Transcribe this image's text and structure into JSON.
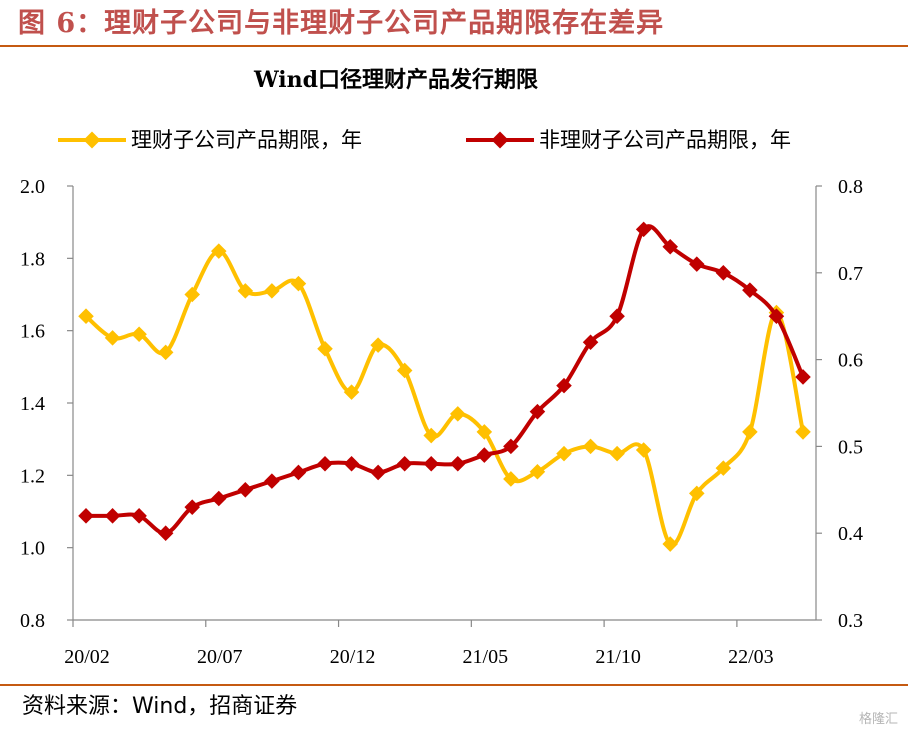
{
  "figure": {
    "title": "图  6：理财子公司与非理财子公司产品期限存在差异",
    "source": "资料来源：Wind，招商证券",
    "watermark": "格隆汇"
  },
  "chart_data": {
    "type": "line",
    "title": "Wind口径理财产品发行期限",
    "categories": [
      "20/02",
      "20/03",
      "20/04",
      "20/05",
      "20/06",
      "20/07",
      "20/08",
      "20/09",
      "20/10",
      "20/11",
      "20/12",
      "21/01",
      "21/02",
      "21/03",
      "21/04",
      "21/05",
      "21/06",
      "21/07",
      "21/08",
      "21/09",
      "21/10",
      "21/11",
      "21/12",
      "22/01",
      "22/02",
      "22/03",
      "22/04",
      "22/05"
    ],
    "xtick_labels": [
      "20/02",
      "20/07",
      "20/12",
      "21/05",
      "21/10",
      "22/03"
    ],
    "left_axis": {
      "ylim": [
        0.8,
        2.0
      ],
      "ticks": [
        "0.8",
        "1.0",
        "1.2",
        "1.4",
        "1.6",
        "1.8",
        "2.0"
      ]
    },
    "right_axis": {
      "ylim": [
        0.3,
        0.8
      ],
      "ticks": [
        "0.3",
        "0.4",
        "0.5",
        "0.6",
        "0.7",
        "0.8"
      ]
    },
    "series": [
      {
        "name": "理财子公司产品期限，年",
        "axis": "left",
        "color": "#ffc000",
        "values": [
          1.64,
          1.58,
          1.59,
          1.54,
          1.7,
          1.82,
          1.71,
          1.71,
          1.73,
          1.55,
          1.43,
          1.56,
          1.49,
          1.31,
          1.37,
          1.32,
          1.19,
          1.21,
          1.26,
          1.28,
          1.26,
          1.27,
          1.01,
          1.15,
          1.22,
          1.32,
          1.65,
          1.32
        ]
      },
      {
        "name": "非理财子公司产品期限，年",
        "axis": "right",
        "color": "#c00000",
        "values": [
          0.42,
          0.42,
          0.42,
          0.4,
          0.43,
          0.44,
          0.45,
          0.46,
          0.47,
          0.48,
          0.48,
          0.47,
          0.48,
          0.48,
          0.48,
          0.49,
          0.5,
          0.54,
          0.57,
          0.62,
          0.65,
          0.75,
          0.73,
          0.71,
          0.7,
          0.68,
          0.65,
          0.58
        ]
      }
    ],
    "grid": false,
    "legend_position": "top"
  }
}
